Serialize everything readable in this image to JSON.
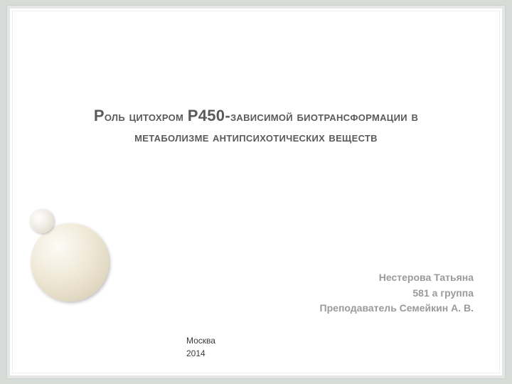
{
  "slide": {
    "background_color": "#ffffff",
    "page_background": "#d8dcd8",
    "frame_color": "#e6e6e6",
    "title": {
      "line1_prefix_big": "Р",
      "line1_part1": "оль цитохром ",
      "line1_mid_big": "Р450-",
      "line1_part2": "зависимой биотрансформации в",
      "line2": "метаболизме антипсихотических веществ",
      "color": "#5a5a5a"
    },
    "author": {
      "line1": "Нестерова Татьяна",
      "line2": "581 а группа",
      "line3": "Преподаватель Семейкин А. В.",
      "color": "#9a9a9a"
    },
    "footer": {
      "city": "Москва",
      "year": "2014",
      "color": "#3a3a3a"
    },
    "decor": {
      "small_circle_color": "#e8e3d5",
      "large_circle_color": "#e3dbc4"
    }
  }
}
